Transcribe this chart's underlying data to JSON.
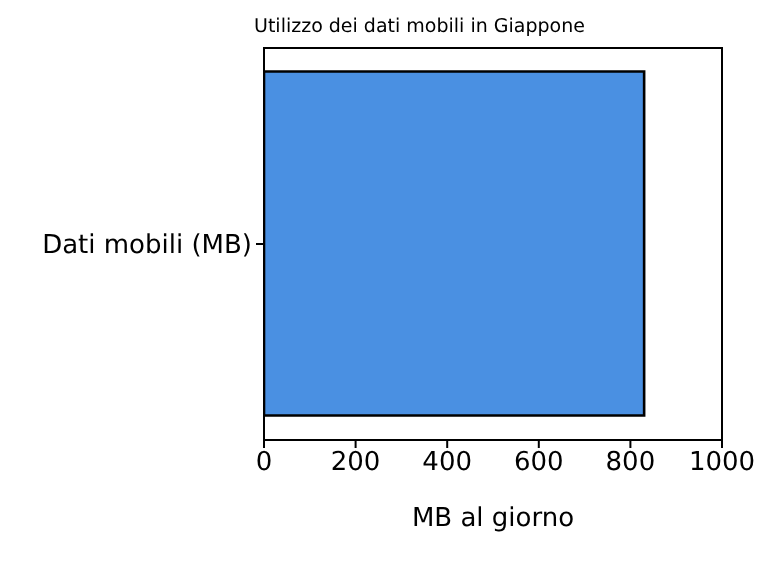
{
  "chart_data": {
    "type": "bar",
    "orientation": "horizontal",
    "title": "Utilizzo dei dati mobili in Giappone",
    "xlabel": "MB al giorno",
    "categories": [
      "Dati mobili (MB)"
    ],
    "series": [
      {
        "color": "#4a90e2",
        "values": [
          830
        ]
      }
    ],
    "xlim": [
      0,
      1000
    ],
    "xticks": [
      0,
      200,
      400,
      600,
      800,
      1000
    ],
    "grid": false,
    "legend": false
  }
}
